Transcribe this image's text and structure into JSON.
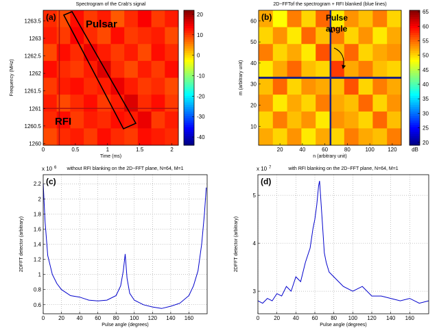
{
  "chart_data": [
    {
      "type": "heatmap",
      "panel_label": "(a)",
      "title": "Spectrogram of the Crab's signal",
      "xlabel": "Time (ms)",
      "ylabel": "Frequency (MHz)",
      "xlim": [
        0,
        2.1
      ],
      "xticks": [
        0,
        0.5,
        1,
        1.5,
        2
      ],
      "ylim": [
        1259.95,
        1263.8
      ],
      "yticks": [
        1260,
        1260.5,
        1261,
        1261.5,
        1262,
        1262.5,
        1263,
        1263.5
      ],
      "clim": [
        -44,
        22
      ],
      "cticks": [
        20,
        10,
        0,
        -10,
        -20,
        -30,
        -40
      ],
      "z": [
        [
          11,
          9,
          13,
          10,
          12,
          8,
          11,
          14,
          10,
          12
        ],
        [
          12,
          10,
          14,
          11,
          9,
          13,
          10,
          11,
          12,
          9
        ],
        [
          9,
          13,
          11,
          15,
          12,
          10,
          12,
          9,
          13,
          11
        ],
        [
          13,
          11,
          10,
          12,
          16,
          11,
          9,
          12,
          10,
          13
        ],
        [
          10,
          12,
          13,
          11,
          12,
          15,
          12,
          10,
          11,
          9
        ],
        [
          12,
          9,
          11,
          13,
          10,
          12,
          16,
          11,
          13,
          10
        ],
        [
          11,
          13,
          10,
          12,
          11,
          13,
          12,
          15,
          10,
          12
        ],
        [
          9,
          11,
          12,
          10,
          13,
          11,
          10,
          13,
          12,
          11
        ]
      ],
      "rfi_time": 0.25,
      "rfi_frequency": 1261,
      "rfi_color": "#b01010",
      "annotations": [
        "Pulsar",
        "RFI"
      ]
    },
    {
      "type": "heatmap",
      "panel_label": "(b)",
      "title": "2D−FFTof the spectrogram + RFI blanked (blue lines)",
      "xlabel": "n (arbitrary unit)",
      "ylabel": "m (arbitrary unit)",
      "xlim": [
        1,
        128
      ],
      "xticks": [
        20,
        40,
        60,
        80,
        100,
        120
      ],
      "ylim": [
        1,
        65
      ],
      "yticks": [
        10,
        20,
        30,
        40,
        50,
        60
      ],
      "clim": [
        19,
        65.5
      ],
      "cticks": [
        65,
        60,
        55,
        50,
        45,
        40,
        35,
        30,
        25,
        20
      ],
      "clabel": "dB",
      "z": [
        [
          52,
          48,
          54,
          50,
          55,
          49,
          53,
          51,
          54,
          50
        ],
        [
          50,
          53,
          49,
          55,
          51,
          54,
          50,
          53,
          49,
          52
        ],
        [
          54,
          50,
          52,
          49,
          56,
          51,
          55,
          50,
          52,
          53
        ],
        [
          49,
          52,
          55,
          51,
          50,
          57,
          52,
          54,
          51,
          50
        ],
        [
          51,
          55,
          50,
          53,
          52,
          51,
          56,
          50,
          54,
          52
        ],
        [
          53,
          49,
          52,
          50,
          54,
          52,
          51,
          55,
          50,
          53
        ],
        [
          50,
          54,
          51,
          53,
          49,
          53,
          52,
          50,
          55,
          51
        ],
        [
          52,
          50,
          53,
          49,
          52,
          50,
          54,
          52,
          51,
          54
        ]
      ],
      "blanked_n": 65,
      "blanked_m": 33,
      "blanked_color": "#1a237e",
      "annotations": [
        "Pulse",
        "angle"
      ]
    },
    {
      "type": "line",
      "panel_label": "(c)",
      "title": "without RFI blanking on the 2D−FFT plane, N=64, M=1",
      "xlabel": "Pulse angle  (degrees)",
      "ylabel": "2DFFT detector (arbitrary)",
      "y_scale_label": "x 10",
      "y_scale_exponent": 6,
      "color": "#0000cc",
      "grid": true,
      "xlim": [
        0,
        180
      ],
      "xticks": [
        0,
        20,
        40,
        60,
        80,
        100,
        120,
        140,
        160
      ],
      "ylim": [
        0.48,
        2.32
      ],
      "yticks": [
        0.6,
        0.8,
        1,
        1.2,
        1.4,
        1.6,
        1.8,
        2,
        2.2
      ],
      "x": [
        0,
        2,
        5,
        10,
        15,
        20,
        30,
        40,
        50,
        60,
        70,
        80,
        85,
        88,
        90,
        92,
        95,
        100,
        110,
        120,
        130,
        140,
        150,
        160,
        165,
        170,
        174,
        177,
        179
      ],
      "values": [
        2.2,
        1.7,
        1.25,
        1.0,
        0.88,
        0.8,
        0.72,
        0.7,
        0.66,
        0.65,
        0.66,
        0.72,
        0.85,
        1.05,
        1.27,
        0.95,
        0.75,
        0.66,
        0.6,
        0.57,
        0.55,
        0.58,
        0.62,
        0.72,
        0.85,
        1.05,
        1.4,
        1.8,
        2.15
      ]
    },
    {
      "type": "line",
      "panel_label": "(d)",
      "title": "with RFI blanking on the 2D−FFT plane, N=64, M=1",
      "xlabel": "Pulse angle  (degrees)",
      "ylabel": "2DFFT detector (arbitrary)",
      "y_scale_label": "x 10",
      "y_scale_exponent": 7,
      "color": "#0000cc",
      "grid": true,
      "xlim": [
        0,
        180
      ],
      "xticks": [
        0,
        20,
        40,
        60,
        80,
        100,
        120,
        140,
        160
      ],
      "ylim": [
        2.53,
        5.43
      ],
      "yticks": [
        3,
        4,
        5
      ],
      "x": [
        0,
        5,
        10,
        15,
        20,
        25,
        30,
        35,
        40,
        45,
        50,
        55,
        58,
        60,
        62,
        64,
        65,
        66,
        68,
        70,
        72,
        75,
        80,
        85,
        90,
        100,
        110,
        120,
        130,
        140,
        150,
        160,
        170,
        180
      ],
      "values": [
        2.8,
        2.75,
        2.85,
        2.8,
        2.95,
        2.9,
        3.1,
        3.0,
        3.3,
        3.2,
        3.6,
        3.9,
        4.3,
        4.5,
        4.8,
        5.2,
        5.3,
        5.0,
        4.4,
        3.8,
        3.6,
        3.4,
        3.3,
        3.2,
        3.1,
        3.0,
        3.1,
        2.9,
        2.9,
        2.85,
        2.8,
        2.85,
        2.75,
        2.8
      ]
    }
  ]
}
